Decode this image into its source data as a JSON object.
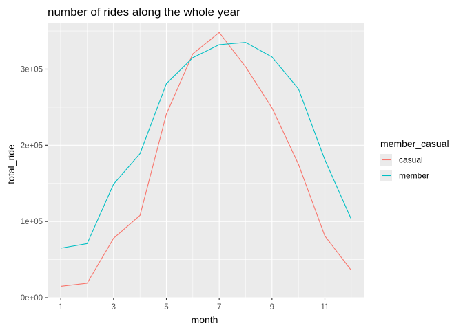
{
  "chart_data": {
    "type": "line",
    "title": "number of rides along the whole year",
    "xlabel": "month",
    "ylabel": "total_ride",
    "xlim": [
      0.5,
      12.5
    ],
    "ylim": [
      0,
      360000
    ],
    "x_ticks": [
      1,
      3,
      5,
      7,
      9,
      11
    ],
    "x_tick_labels": [
      "1",
      "3",
      "5",
      "7",
      "9",
      "11"
    ],
    "y_ticks": [
      0,
      100000,
      200000,
      300000
    ],
    "y_tick_labels": [
      "0e+00",
      "1e+05",
      "2e+05",
      "3e+05"
    ],
    "grid": true,
    "legend": {
      "title": "member_casual",
      "position": "right"
    },
    "x": [
      1,
      2,
      3,
      4,
      5,
      6,
      7,
      8,
      9,
      10,
      11,
      12
    ],
    "series": [
      {
        "name": "casual",
        "color": "#F8766D",
        "values": [
          15000,
          19000,
          78000,
          108000,
          241000,
          320000,
          348000,
          303000,
          249000,
          175000,
          81000,
          36000
        ]
      },
      {
        "name": "member",
        "color": "#00BFC4",
        "values": [
          65000,
          71000,
          149000,
          189000,
          281000,
          315000,
          332000,
          335000,
          316000,
          274000,
          181000,
          103000
        ]
      }
    ]
  }
}
